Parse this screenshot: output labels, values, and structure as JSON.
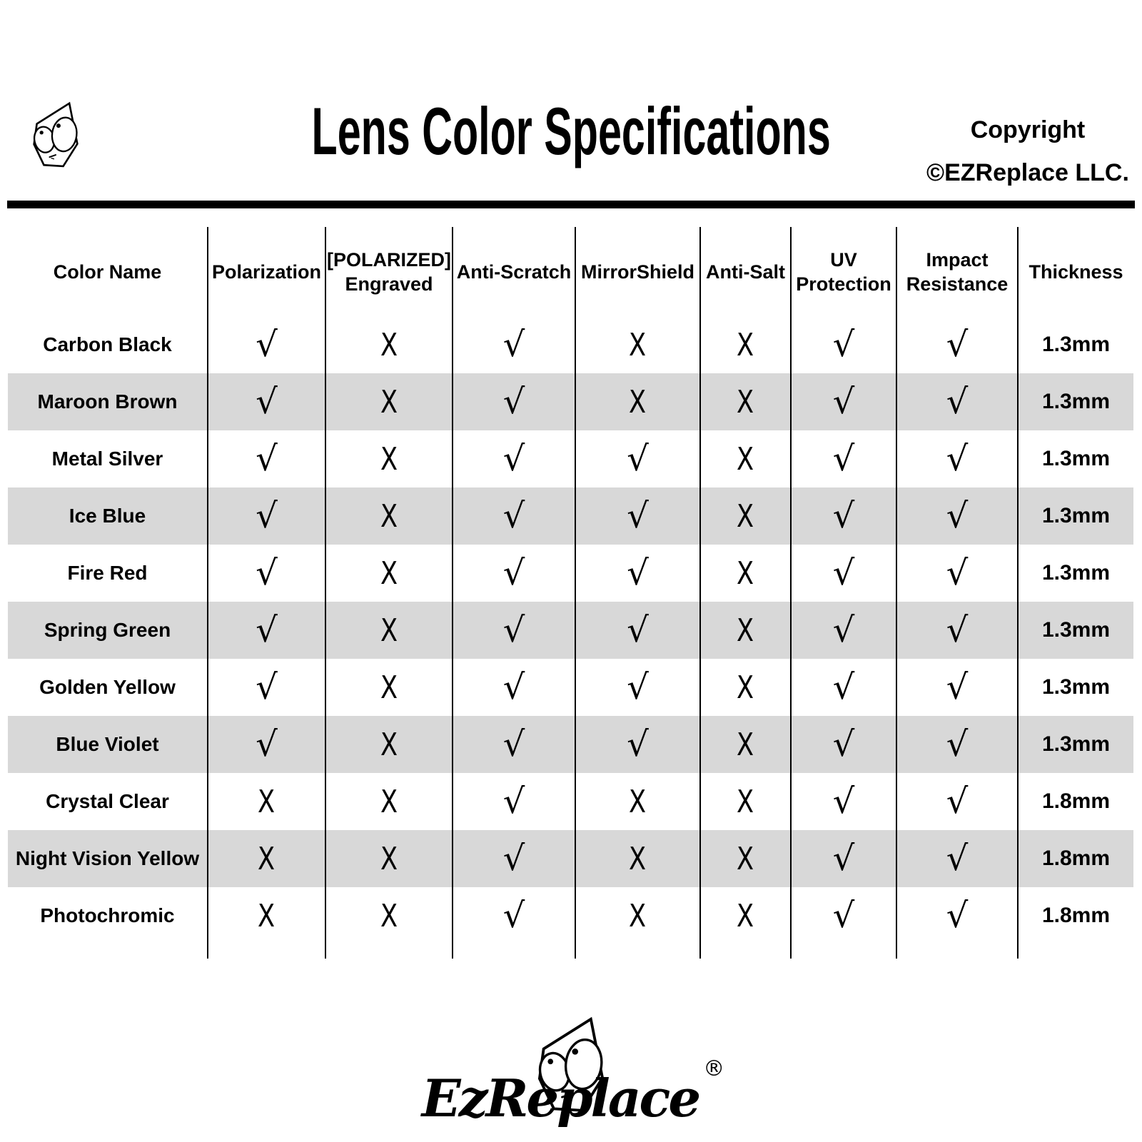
{
  "header": {
    "title": "Lens Color Specifications",
    "copyright_line1": "Copyright",
    "copyright_line2": "©EZReplace LLC."
  },
  "logo": {
    "brand": "EzReplace",
    "registered": "®"
  },
  "colors": {
    "ink": "#000000",
    "row_alt_background": "#d8d8d8",
    "page_background": "#ffffff"
  },
  "marks": {
    "yes": "√",
    "no": "X"
  },
  "table": {
    "columns": [
      "Color Name",
      "Polarization",
      "[POLARIZED]\nEngraved",
      "Anti-Scratch",
      "MirrorShield",
      "Anti-Salt",
      "UV\nProtection",
      "Impact\nResistance",
      "Thickness"
    ],
    "rows": [
      {
        "name": "Carbon Black",
        "values": [
          "√",
          "X",
          "√",
          "X",
          "X",
          "√",
          "√"
        ],
        "thickness": "1.3mm"
      },
      {
        "name": "Maroon Brown",
        "values": [
          "√",
          "X",
          "√",
          "X",
          "X",
          "√",
          "√"
        ],
        "thickness": "1.3mm"
      },
      {
        "name": "Metal Silver",
        "values": [
          "√",
          "X",
          "√",
          "√",
          "X",
          "√",
          "√"
        ],
        "thickness": "1.3mm"
      },
      {
        "name": "Ice Blue",
        "values": [
          "√",
          "X",
          "√",
          "√",
          "X",
          "√",
          "√"
        ],
        "thickness": "1.3mm"
      },
      {
        "name": "Fire Red",
        "values": [
          "√",
          "X",
          "√",
          "√",
          "X",
          "√",
          "√"
        ],
        "thickness": "1.3mm"
      },
      {
        "name": "Spring Green",
        "values": [
          "√",
          "X",
          "√",
          "√",
          "X",
          "√",
          "√"
        ],
        "thickness": "1.3mm"
      },
      {
        "name": "Golden Yellow",
        "values": [
          "√",
          "X",
          "√",
          "√",
          "X",
          "√",
          "√"
        ],
        "thickness": "1.3mm"
      },
      {
        "name": "Blue Violet",
        "values": [
          "√",
          "X",
          "√",
          "√",
          "X",
          "√",
          "√"
        ],
        "thickness": "1.3mm"
      },
      {
        "name": "Crystal Clear",
        "values": [
          "X",
          "X",
          "√",
          "X",
          "X",
          "√",
          "√"
        ],
        "thickness": "1.8mm"
      },
      {
        "name": "Night Vision Yellow",
        "values": [
          "X",
          "X",
          "√",
          "X",
          "X",
          "√",
          "√"
        ],
        "thickness": "1.8mm"
      },
      {
        "name": "Photochromic",
        "values": [
          "X",
          "X",
          "√",
          "X",
          "X",
          "√",
          "√"
        ],
        "thickness": "1.8mm"
      }
    ]
  }
}
